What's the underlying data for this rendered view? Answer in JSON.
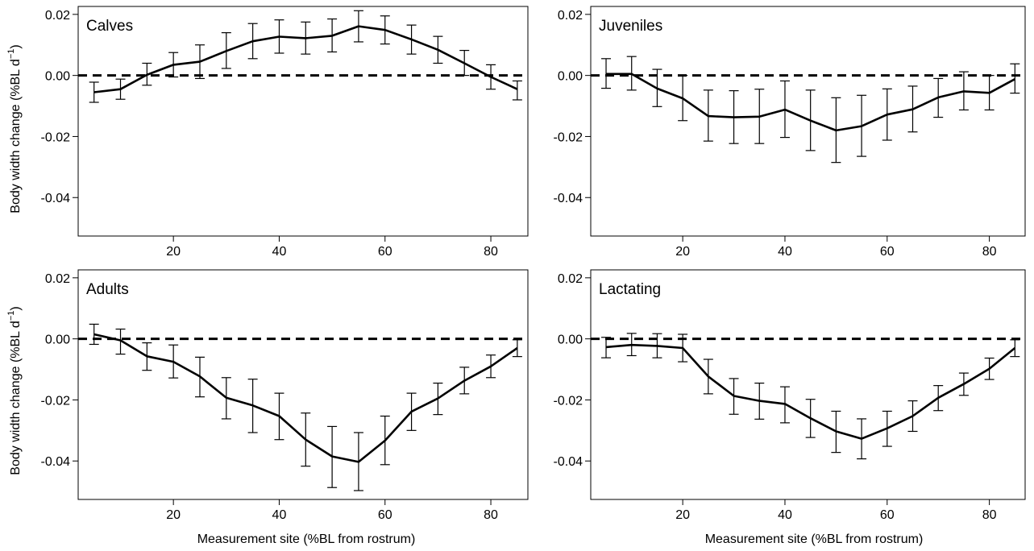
{
  "figure": {
    "ylabel_main": "Body width change (%BL d",
    "ylabel_sup": "−1",
    "ylabel_close": ")",
    "xlabel": "Measurement site (%BL from rostrum)"
  },
  "chart_data": [
    {
      "type": "line",
      "title": "Calves",
      "xlabel": "",
      "ylabel": "Body width change (%BL d−1)",
      "x": [
        5,
        10,
        15,
        20,
        25,
        30,
        35,
        40,
        45,
        50,
        55,
        60,
        65,
        70,
        75,
        80,
        85
      ],
      "y": [
        -0.0055,
        -0.0045,
        0.0002,
        0.0035,
        0.0045,
        0.008,
        0.0112,
        0.0127,
        0.0122,
        0.013,
        0.0161,
        0.0149,
        0.0118,
        0.0084,
        0.004,
        -0.0005,
        -0.0045
      ],
      "err_low": [
        -0.0088,
        -0.0078,
        -0.0032,
        -0.0005,
        -0.001,
        0.0023,
        0.0055,
        0.0073,
        0.007,
        0.0077,
        0.011,
        0.0103,
        0.007,
        0.004,
        0.0,
        -0.0045,
        -0.008
      ],
      "err_high": [
        -0.0022,
        -0.0012,
        0.004,
        0.0075,
        0.01,
        0.014,
        0.017,
        0.0182,
        0.0175,
        0.0185,
        0.0212,
        0.0195,
        0.0165,
        0.0128,
        0.0082,
        0.0035,
        -0.0018
      ],
      "xlim": [
        2,
        87
      ],
      "ylim": [
        -0.0526,
        0.0226
      ],
      "xticks": [
        "20",
        "40",
        "60",
        "80"
      ],
      "yticks": [
        "0.02",
        "0.00",
        "-0.02",
        "-0.04"
      ],
      "reference_line": 0
    },
    {
      "type": "line",
      "title": "Juveniles",
      "xlabel": "",
      "ylabel": "",
      "x": [
        5,
        10,
        15,
        20,
        25,
        30,
        35,
        40,
        45,
        50,
        55,
        60,
        65,
        70,
        75,
        80,
        85
      ],
      "y": [
        0.0005,
        0.0005,
        -0.0043,
        -0.0075,
        -0.0133,
        -0.0137,
        -0.0135,
        -0.0112,
        -0.0148,
        -0.018,
        -0.0166,
        -0.0128,
        -0.0111,
        -0.0072,
        -0.0052,
        -0.0057,
        -0.0012
      ],
      "err_low": [
        -0.0042,
        -0.0048,
        -0.0102,
        -0.0148,
        -0.0215,
        -0.0223,
        -0.0223,
        -0.0203,
        -0.0246,
        -0.0285,
        -0.0265,
        -0.0212,
        -0.0185,
        -0.0137,
        -0.0113,
        -0.0113,
        -0.0058
      ],
      "err_high": [
        0.0055,
        0.0062,
        0.002,
        0.0,
        -0.0048,
        -0.005,
        -0.0045,
        -0.0018,
        -0.0048,
        -0.0073,
        -0.0065,
        -0.0044,
        -0.0035,
        -0.001,
        0.0012,
        0.0,
        0.0038
      ],
      "xlim": [
        2,
        87
      ],
      "ylim": [
        -0.0526,
        0.0226
      ],
      "xticks": [
        "20",
        "40",
        "60",
        "80"
      ],
      "yticks": [
        "0.02",
        "0.00",
        "-0.02",
        "-0.04"
      ],
      "reference_line": 0
    },
    {
      "type": "line",
      "title": "Adults",
      "xlabel": "Measurement site (%BL from rostrum)",
      "ylabel": "Body width change (%BL d−1)",
      "x": [
        5,
        10,
        15,
        20,
        25,
        30,
        35,
        40,
        45,
        50,
        55,
        60,
        65,
        70,
        75,
        80,
        85
      ],
      "y": [
        0.0015,
        -0.0005,
        -0.0057,
        -0.0075,
        -0.0123,
        -0.0193,
        -0.0218,
        -0.0253,
        -0.033,
        -0.0385,
        -0.0403,
        -0.0333,
        -0.0238,
        -0.0195,
        -0.0137,
        -0.009,
        -0.003
      ],
      "err_low": [
        -0.0018,
        -0.005,
        -0.0103,
        -0.0128,
        -0.019,
        -0.0262,
        -0.0307,
        -0.033,
        -0.0417,
        -0.0487,
        -0.0497,
        -0.0412,
        -0.03,
        -0.0248,
        -0.018,
        -0.0127,
        -0.0058
      ],
      "err_high": [
        0.0048,
        0.0032,
        -0.0013,
        -0.002,
        -0.006,
        -0.0127,
        -0.0132,
        -0.0178,
        -0.0243,
        -0.0287,
        -0.0307,
        -0.0253,
        -0.0178,
        -0.0145,
        -0.0093,
        -0.0053,
        -0.0003
      ],
      "xlim": [
        2,
        87
      ],
      "ylim": [
        -0.0526,
        0.0226
      ],
      "xticks": [
        "20",
        "40",
        "60",
        "80"
      ],
      "yticks": [
        "0.02",
        "0.00",
        "-0.02",
        "-0.04"
      ],
      "reference_line": 0
    },
    {
      "type": "line",
      "title": "Lactating",
      "xlabel": "Measurement site (%BL from rostrum)",
      "ylabel": "",
      "x": [
        5,
        10,
        15,
        20,
        25,
        30,
        35,
        40,
        45,
        50,
        55,
        60,
        65,
        70,
        75,
        80,
        85
      ],
      "y": [
        -0.0027,
        -0.002,
        -0.0023,
        -0.003,
        -0.0123,
        -0.0187,
        -0.0203,
        -0.0213,
        -0.026,
        -0.0303,
        -0.0327,
        -0.0293,
        -0.0253,
        -0.0193,
        -0.0148,
        -0.0098,
        -0.003
      ],
      "err_low": [
        -0.0062,
        -0.0055,
        -0.0062,
        -0.0075,
        -0.018,
        -0.0247,
        -0.0263,
        -0.0275,
        -0.0323,
        -0.0372,
        -0.0393,
        -0.0352,
        -0.0303,
        -0.0235,
        -0.0185,
        -0.0133,
        -0.0058
      ],
      "err_high": [
        0.0005,
        0.0018,
        0.0017,
        0.0015,
        -0.0067,
        -0.013,
        -0.0145,
        -0.0157,
        -0.0198,
        -0.0237,
        -0.0262,
        -0.0237,
        -0.0203,
        -0.0153,
        -0.0112,
        -0.0063,
        -0.0003
      ],
      "xlim": [
        2,
        87
      ],
      "ylim": [
        -0.0526,
        0.0226
      ],
      "xticks": [
        "20",
        "40",
        "60",
        "80"
      ],
      "yticks": [
        "0.02",
        "0.00",
        "-0.02",
        "-0.04"
      ],
      "reference_line": 0
    }
  ]
}
